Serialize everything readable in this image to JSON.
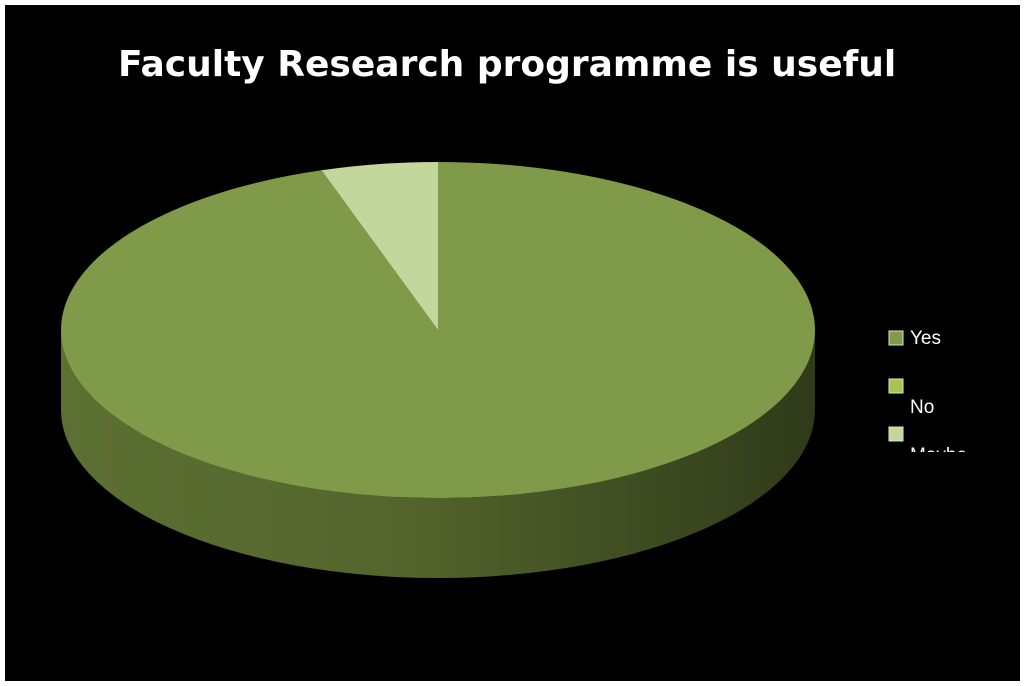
{
  "chart_data": {
    "type": "pie3d",
    "title": "Faculty Research programme is useful",
    "categories": [
      "Yes",
      "No",
      "Maybe"
    ],
    "values": [
      95,
      0,
      5
    ],
    "colors": [
      "#7f9a48",
      "#a5c54e",
      "#c3d69b"
    ],
    "legend": "right"
  }
}
